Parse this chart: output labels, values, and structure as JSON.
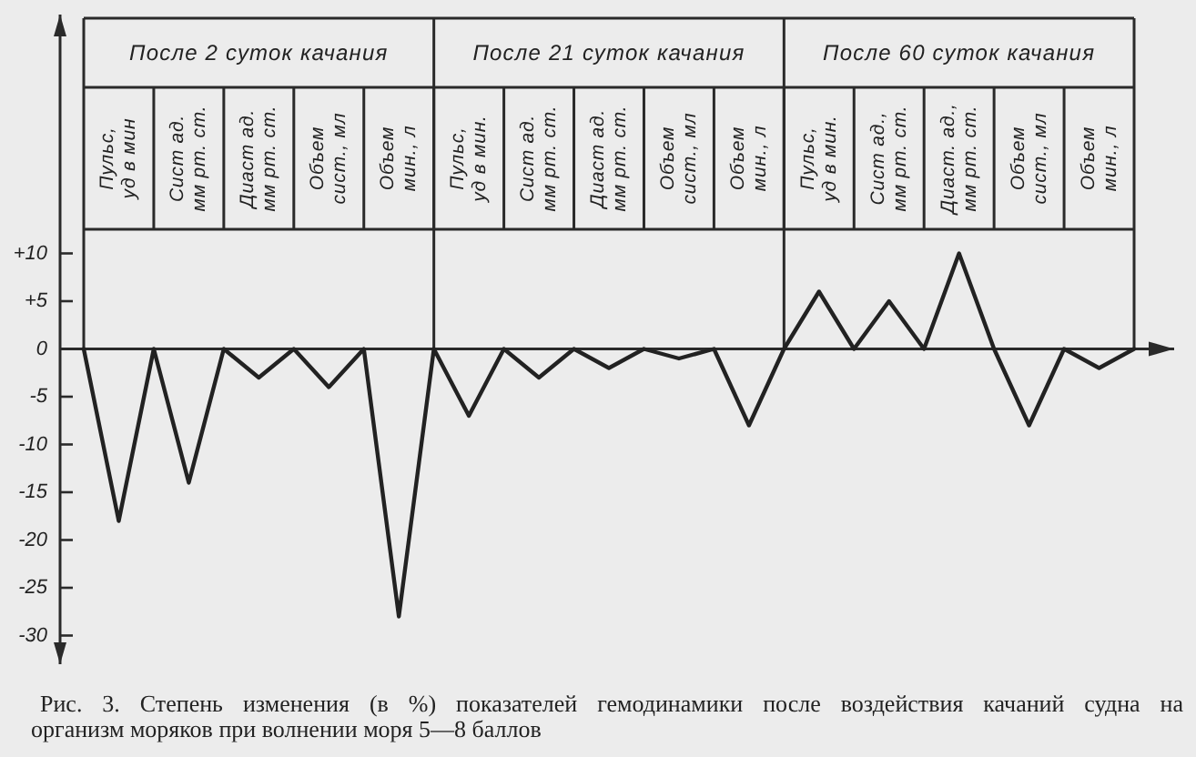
{
  "chart_data": {
    "type": "line",
    "color": "#222222",
    "grid": true,
    "categories": [
      null,
      "Пульс,\nуд в мин",
      null,
      "Сист ад.\nмм рт. ст.",
      null,
      "Диаст ад.\nмм рт. ст.",
      null,
      "Объем\nсист., мл",
      null,
      "Объем\nмин., л",
      null,
      "Пульс,\nуд в мин.",
      null,
      "Сист ад.\nмм рт. ст.",
      null,
      "Диаст ад.\nмм рт. ст.",
      null,
      "Объем\nсист., мл",
      null,
      "Объем\nмин., л",
      null,
      "Пульс,\nуд в мин.",
      null,
      "Сист ад.,\nмм рт. ст.",
      null,
      "Диаст. ад.,\nмм рт. ст.",
      null,
      "Объем\nсист., мл",
      null,
      "Объем\nмин., л",
      null
    ],
    "values": [
      0,
      -18,
      0,
      -14,
      0,
      -3,
      0,
      -4,
      0,
      -28,
      0,
      -7,
      0,
      -3,
      0,
      -2,
      0,
      -1,
      0,
      -8,
      0,
      6,
      0,
      5,
      0,
      10,
      0,
      -8,
      0,
      -2,
      0
    ],
    "ylim": [
      -33,
      35
    ],
    "yticks": [
      {
        "value": 10,
        "label": "+10"
      },
      {
        "value": 5,
        "label": "+5"
      },
      0,
      -5,
      -10,
      -15,
      -20,
      -25,
      -30
    ],
    "annotations": [
      "После 2 суток качания",
      "После 21 суток качания",
      "После 60 суток качания",
      "Рис. 3. Степень изменения (в %) показателей гемодинамики после воздействия качаний судна на организм моряков при волнении моря 5—8 баллов"
    ]
  }
}
